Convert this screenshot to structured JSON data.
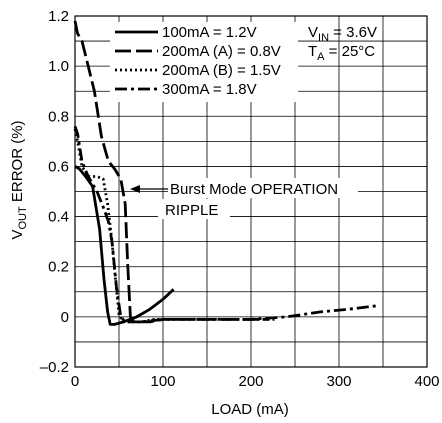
{
  "chart_data": {
    "type": "line",
    "xlabel": "LOAD (mA)",
    "ylabel": {
      "main": "V",
      "sub": "OUT",
      "rest": " ERROR (%)"
    },
    "xlim": [
      0,
      400
    ],
    "ylim": [
      -0.2,
      1.2
    ],
    "xticks": [
      0,
      100,
      200,
      300,
      400
    ],
    "yticks": [
      -0.2,
      0,
      0.2,
      0.4,
      0.6,
      0.8,
      1.0,
      1.2
    ],
    "xtick_labels": [
      "0",
      "100",
      "200",
      "300",
      "400"
    ],
    "ytick_labels": [
      "–0.2",
      "0",
      "0.2",
      "0.4",
      "0.6",
      "0.8",
      "1.0",
      "1.2"
    ],
    "grid": true,
    "legend_position": "top-left",
    "conditions": [
      {
        "main": "V",
        "sub": "IN",
        "rest": " = 3.6V"
      },
      {
        "main": "T",
        "sub": "A",
        "rest": " = 25°C"
      }
    ],
    "annotations": {
      "burst": "Burst Mode OPERATION",
      "ripple": "RIPPLE"
    },
    "series": [
      {
        "name": "100mA = 1.2V",
        "style": "solid",
        "x": [
          0,
          5,
          12,
          20,
          28,
          33,
          37,
          40,
          45,
          55,
          70,
          85,
          100,
          112
        ],
        "y": [
          0.6,
          0.59,
          0.56,
          0.52,
          0.35,
          0.15,
          0.02,
          -0.03,
          -0.03,
          -0.02,
          0,
          0.03,
          0.07,
          0.11
        ]
      },
      {
        "name": "200mA (A) = 0.8V",
        "style": "dashed",
        "x": [
          0,
          3,
          8,
          15,
          22,
          30,
          38,
          45,
          52,
          57,
          60,
          63,
          67,
          75,
          85,
          100,
          120,
          150,
          180,
          200,
          220
        ],
        "y": [
          1.18,
          1.13,
          1.1,
          1.0,
          0.9,
          0.72,
          0.62,
          0.59,
          0.55,
          0.45,
          0.2,
          0.0,
          -0.02,
          -0.02,
          -0.02,
          -0.01,
          -0.01,
          -0.01,
          -0.01,
          -0.01,
          -0.01
        ]
      },
      {
        "name": "200mA (B) = 1.5V",
        "style": "dotted",
        "x": [
          0,
          3,
          8,
          15,
          25,
          32,
          37,
          42,
          46,
          50,
          55,
          62,
          75,
          90,
          110,
          130,
          160,
          190,
          220,
          230
        ],
        "y": [
          0.75,
          0.7,
          0.6,
          0.56,
          0.56,
          0.55,
          0.45,
          0.3,
          0.15,
          0.01,
          -0.02,
          -0.02,
          -0.02,
          -0.01,
          -0.01,
          -0.01,
          -0.01,
          -0.01,
          -0.01,
          -0.01
        ]
      },
      {
        "name": "300mA = 1.8V",
        "style": "dashdot",
        "x": [
          0,
          3,
          8,
          15,
          25,
          33,
          38,
          42,
          47,
          52,
          57,
          62,
          75,
          100,
          130,
          160,
          200,
          240,
          280,
          310,
          345
        ],
        "y": [
          0.76,
          0.73,
          0.62,
          0.56,
          0.5,
          0.43,
          0.38,
          0.3,
          0.12,
          0.0,
          -0.02,
          -0.02,
          -0.02,
          -0.01,
          -0.01,
          -0.01,
          -0.01,
          0.0,
          0.02,
          0.03,
          0.045
        ]
      }
    ]
  }
}
